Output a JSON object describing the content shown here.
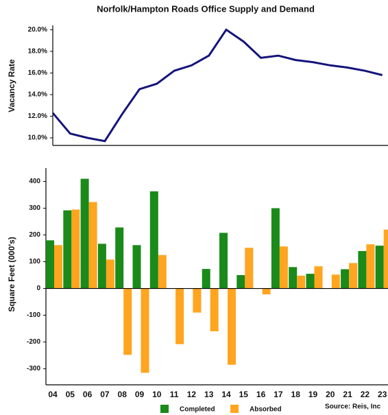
{
  "chart_data": [
    {
      "type": "line",
      "title": "Norfolk/Hampton Roads Office Supply and Demand",
      "ylabel": "Vacancy Rate",
      "color": "#14147a",
      "values": [
        12.3,
        10.4,
        10.0,
        9.7,
        12.2,
        14.5,
        15.0,
        16.2,
        16.7,
        17.6,
        20.0,
        18.9,
        17.4,
        17.6,
        17.2,
        17.0,
        16.7,
        16.5,
        16.2,
        15.8
      ],
      "ylim": [
        9.3,
        20.4
      ],
      "yticks": [
        {
          "value": 10,
          "label": "10.0%"
        },
        {
          "value": 12,
          "label": "12.0%"
        },
        {
          "value": 14,
          "label": "14.0%"
        },
        {
          "value": 16,
          "label": "16.0%"
        },
        {
          "value": 18,
          "label": "18.0%"
        },
        {
          "value": 20,
          "label": "20.0%"
        }
      ]
    },
    {
      "type": "bar",
      "ylabel": "Square Feet (000's)",
      "source": "Source: Reis, Inc",
      "categories": [
        "04",
        "05",
        "06",
        "07",
        "08",
        "09",
        "10",
        "11",
        "12",
        "13",
        "14",
        "15",
        "16",
        "17",
        "18",
        "19",
        "20",
        "21",
        "22",
        "23"
      ],
      "series": [
        {
          "name": "Completed",
          "color": "#1a8a1a",
          "values": [
            180,
            292,
            410,
            167,
            228,
            162,
            363,
            0,
            0,
            73,
            208,
            50,
            0,
            300,
            80,
            55,
            0,
            72,
            140,
            160
          ]
        },
        {
          "name": "Absorbed",
          "color": "#ffa51f",
          "values": [
            162,
            295,
            323,
            108,
            -248,
            -315,
            125,
            -208,
            -90,
            -160,
            -285,
            152,
            -22,
            157,
            48,
            83,
            52,
            95,
            165,
            220
          ]
        }
      ],
      "ylim": [
        -360,
        450
      ],
      "yticks": [
        -300,
        -200,
        -100,
        0,
        100,
        200,
        300,
        400
      ]
    }
  ]
}
